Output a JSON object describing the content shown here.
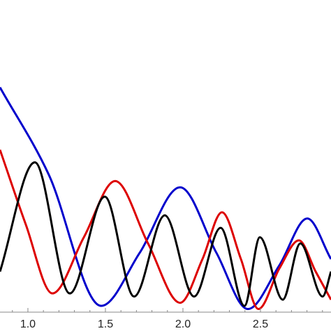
{
  "chart_data": {
    "type": "line",
    "xlim": [
      0.82,
      2.955
    ],
    "ylim": [
      0,
      1
    ],
    "xticks": [
      {
        "value": 1,
        "label": "1.0"
      },
      1.5,
      {
        "value": 2,
        "label": "2.0"
      },
      2.5
    ],
    "xminorticks": [
      0.9,
      1.1,
      1.2,
      1.3,
      1.4,
      1.6,
      1.7,
      1.8,
      1.9,
      2.1,
      2.2,
      2.3,
      2.4,
      2.6,
      2.7,
      2.8,
      2.9
    ],
    "series": [
      {
        "color": "#0000cc",
        "x": [
          0.82,
          1.135,
          1.473,
          1.721,
          1.982,
          2.216,
          2.419,
          2.622,
          2.802,
          2.955
        ],
        "values": [
          0.72,
          0.44,
          0.02,
          0.19,
          0.4,
          0.19,
          0.01,
          0.15,
          0.3,
          0.17
        ]
      },
      {
        "color": "#dd0000",
        "x": [
          0.82,
          0.987,
          1.158,
          1.361,
          1.563,
          1.775,
          1.982,
          2.126,
          2.252,
          2.374,
          2.487,
          2.622,
          2.748,
          2.856,
          2.955
        ],
        "values": [
          0.52,
          0.28,
          0.06,
          0.24,
          0.42,
          0.22,
          0.03,
          0.17,
          0.32,
          0.17,
          0.01,
          0.14,
          0.23,
          0.13,
          0.04
        ]
      },
      {
        "color": "#000000",
        "x": [
          0.82,
          1.045,
          1.27,
          1.496,
          1.685,
          1.883,
          2.072,
          2.243,
          2.397,
          2.496,
          2.644,
          2.757,
          2.901,
          2.955
        ],
        "values": [
          0.13,
          0.48,
          0.06,
          0.37,
          0.05,
          0.31,
          0.05,
          0.27,
          0.02,
          0.24,
          0.04,
          0.22,
          0.05,
          0.13
        ]
      }
    ]
  }
}
